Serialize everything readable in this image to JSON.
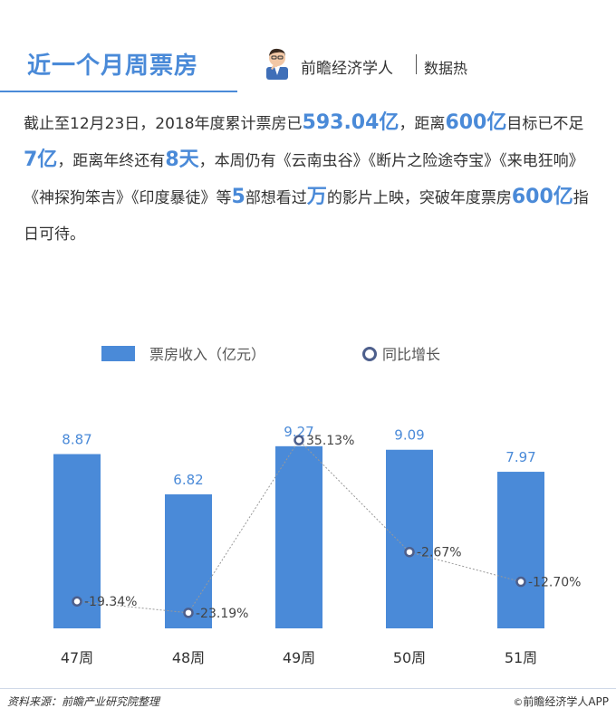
{
  "header": {
    "title": "近一个月周票房",
    "brand_name": "前瞻经济学人",
    "brand_tag": "数据热"
  },
  "paragraph": {
    "t1": "截止至12月23日，2018年度累计票房已",
    "h1": "593.04亿",
    "t2": "，距离",
    "h2": "600亿",
    "t3": "目标已不足",
    "h3": "7亿",
    "t4": "，距离年终还有",
    "h4": "8天",
    "t5": "，本周仍有《云南虫谷》《断片之险途夺宝》《来电狂响》《神探狗笨吉》《印度暴徒》等",
    "h5": "5",
    "t6": "部想看过",
    "h6": "万",
    "t7": "的影片上映，突破年度票房",
    "h7": "600亿",
    "t8": "指日可待。"
  },
  "legend": {
    "bar_label": "票房收入（亿元）",
    "line_label": "同比增长"
  },
  "chart_data": {
    "type": "bar",
    "categories": [
      "47周",
      "48周",
      "49周",
      "50周",
      "51周"
    ],
    "series": [
      {
        "name": "票房收入（亿元）",
        "type": "bar",
        "values": [
          8.87,
          6.82,
          9.27,
          9.09,
          7.97
        ],
        "labels": [
          "8.87",
          "6.82",
          "9.27",
          "9.09",
          "7.97"
        ]
      },
      {
        "name": "同比增长",
        "type": "line",
        "values": [
          -19.34,
          -23.19,
          35.13,
          -2.67,
          -12.7
        ],
        "labels": [
          "-19.34%",
          "-23.19%",
          "35.13%",
          "-2.67%",
          "-12.70%"
        ]
      }
    ],
    "bar_ylim": [
      0,
      10
    ],
    "line_ylim": [
      -30,
      45
    ],
    "colors": {
      "bar": "#4a8ad8",
      "bar_label": "#4a8ad8",
      "line": "#999999",
      "marker": "#4d5f8c",
      "line_label": "#444444"
    }
  },
  "footer": {
    "source": "资料来源：前瞻产业研究院整理",
    "copyright": "©",
    "brand": "前瞻经济学人APP"
  }
}
